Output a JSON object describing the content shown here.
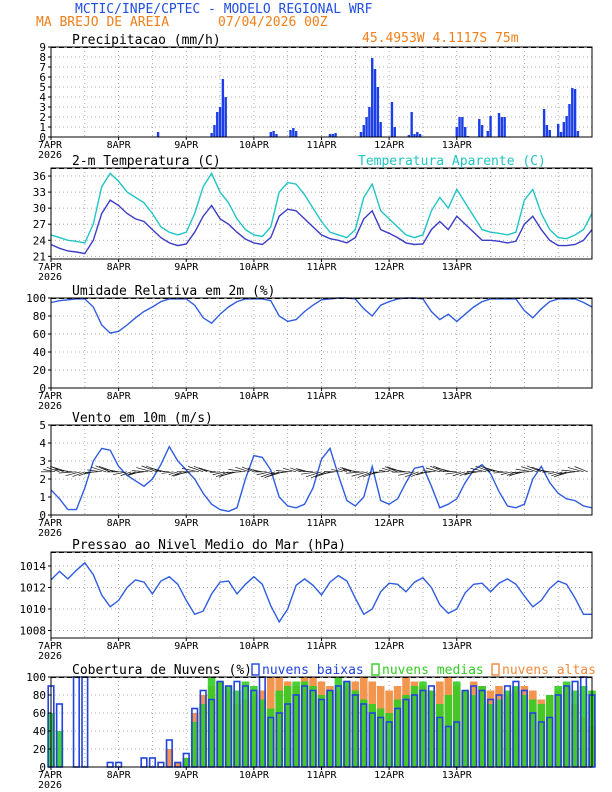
{
  "header": {
    "title": "MCTIC/INPE/CPTEC - MODELO REGIONAL WRF",
    "location": "MA BREJO DE AREIA",
    "run": "07/04/2026 00Z",
    "coords": "45.4953W 4.1117S 75m"
  },
  "colors": {
    "title_blue": "#1f4fe0",
    "orange": "#f07f1a",
    "temp_line": "#3c3cc8",
    "apparent_line": "#22c4c4",
    "line_blue": "#2f5ce0",
    "bar_blue": "#1c3ee6",
    "cloud_low": "#2244dd",
    "cloud_mid": "#33cc22",
    "cloud_high": "#f08a3c"
  },
  "x_axis": {
    "ticks": [
      "7APR",
      "8APR",
      "9APR",
      "10APR",
      "11APR",
      "12APR",
      "13APR"
    ],
    "year": "2026"
  },
  "chart_data": [
    {
      "type": "bar",
      "title": "Precipitacao (mm/h)",
      "ylim": [
        0,
        9
      ],
      "yticks": [
        0,
        1,
        2,
        3,
        4,
        5,
        6,
        7,
        8,
        9
      ],
      "x_hours": [
        26,
        27,
        36,
        38,
        57,
        58,
        59,
        60,
        61,
        62,
        78,
        79,
        80,
        85,
        86,
        87,
        99,
        100,
        101,
        110,
        111,
        112,
        113,
        114,
        115,
        116,
        117,
        121,
        122,
        127,
        128,
        129,
        130,
        131,
        144,
        145,
        146,
        147,
        148,
        152,
        153,
        155,
        156,
        159,
        160,
        161,
        175,
        176,
        177,
        180,
        181,
        182,
        183,
        184,
        185,
        186,
        187
      ],
      "values": [
        0.05,
        0.05,
        0.05,
        0.5,
        0.4,
        1.2,
        2.5,
        3.0,
        5.8,
        4.0,
        0.5,
        0.6,
        0.3,
        0.7,
        0.9,
        0.6,
        0.3,
        0.3,
        0.4,
        0.5,
        1.2,
        2.0,
        3.0,
        7.9,
        6.8,
        5.0,
        1.5,
        3.5,
        1.0,
        0.2,
        2.5,
        0.3,
        0.5,
        0.3,
        1.0,
        2.0,
        2.0,
        1.0,
        0.1,
        1.8,
        1.2,
        0.6,
        2.1,
        2.4,
        2.0,
        2.0,
        2.8,
        1.2,
        0.7,
        1.3,
        0.5,
        1.5,
        2.1,
        3.3,
        4.9,
        4.8,
        0.6
      ]
    },
    {
      "type": "line",
      "title": "2-m Temperatura (C)",
      "ylim": [
        20.5,
        37.5
      ],
      "yticks": [
        21,
        24,
        27,
        30,
        33,
        36
      ],
      "series": [
        {
          "name": "2-m Temperatura (C)",
          "x": [
            0,
            3,
            6,
            9,
            12,
            15,
            18,
            21,
            24,
            27,
            30,
            33,
            36,
            39,
            42,
            45,
            48,
            51,
            54,
            57,
            60,
            63,
            66,
            69,
            72,
            75,
            78,
            81,
            84,
            87,
            90,
            93,
            96,
            99,
            102,
            105,
            108,
            111,
            114,
            117,
            120,
            123,
            126,
            129,
            132,
            135,
            138,
            141,
            144,
            147,
            150,
            153,
            156,
            159,
            162,
            165,
            168,
            171,
            174,
            177,
            180,
            183,
            186,
            189,
            192
          ],
          "y": [
            23.2,
            22.5,
            22.0,
            21.8,
            21.5,
            24.0,
            29.0,
            31.5,
            30.5,
            29.0,
            28.0,
            27.5,
            26.0,
            24.5,
            23.5,
            23.0,
            23.3,
            25.5,
            28.5,
            30.5,
            28.0,
            27.0,
            25.5,
            24.2,
            23.5,
            23.2,
            24.5,
            28.5,
            29.8,
            29.5,
            28.0,
            26.5,
            25.0,
            24.3,
            24.0,
            23.5,
            24.5,
            28.0,
            29.5,
            26.0,
            25.3,
            24.5,
            23.5,
            23.2,
            23.3,
            26.0,
            27.5,
            26.0,
            28.5,
            27.0,
            25.5,
            24.0,
            24.0,
            23.8,
            23.5,
            23.8,
            27.0,
            28.5,
            26.0,
            24.0,
            23.0,
            23.0,
            23.2,
            24.0,
            26.0
          ]
        },
        {
          "name": "Temperatura Aparente (C)",
          "x": [
            0,
            3,
            6,
            9,
            12,
            15,
            18,
            21,
            24,
            27,
            30,
            33,
            36,
            39,
            42,
            45,
            48,
            51,
            54,
            57,
            60,
            63,
            66,
            69,
            72,
            75,
            78,
            81,
            84,
            87,
            90,
            93,
            96,
            99,
            102,
            105,
            108,
            111,
            114,
            117,
            120,
            123,
            126,
            129,
            132,
            135,
            138,
            141,
            144,
            147,
            150,
            153,
            156,
            159,
            162,
            165,
            168,
            171,
            174,
            177,
            180,
            183,
            186,
            189,
            192
          ],
          "y": [
            25.0,
            24.5,
            24.0,
            23.8,
            23.5,
            27.0,
            34.0,
            36.5,
            35.0,
            33.0,
            32.0,
            31.0,
            29.0,
            26.5,
            25.5,
            25.0,
            25.5,
            29.0,
            34.0,
            36.5,
            33.0,
            31.0,
            28.0,
            26.0,
            25.0,
            24.7,
            26.5,
            33.0,
            34.8,
            34.5,
            32.5,
            30.0,
            27.5,
            25.5,
            25.0,
            24.5,
            26.0,
            32.0,
            34.5,
            29.5,
            28.0,
            26.5,
            25.0,
            24.5,
            25.0,
            29.5,
            32.0,
            30.0,
            33.5,
            31.0,
            28.5,
            26.0,
            25.5,
            25.3,
            25.0,
            25.5,
            31.5,
            33.5,
            29.0,
            26.0,
            24.5,
            24.3,
            25.0,
            26.0,
            29.0
          ]
        }
      ]
    },
    {
      "type": "line",
      "title": "Umidade Relativa em 2m (%)",
      "ylim": [
        0,
        100
      ],
      "yticks": [
        0,
        20,
        40,
        60,
        80,
        100
      ],
      "series": [
        {
          "x": [
            0,
            3,
            6,
            9,
            12,
            15,
            18,
            21,
            24,
            27,
            30,
            33,
            36,
            39,
            42,
            45,
            48,
            51,
            54,
            57,
            60,
            63,
            66,
            69,
            72,
            75,
            78,
            81,
            84,
            87,
            90,
            93,
            96,
            99,
            102,
            105,
            108,
            111,
            114,
            117,
            120,
            123,
            126,
            129,
            132,
            135,
            138,
            141,
            144,
            147,
            150,
            153,
            156,
            159,
            162,
            165,
            168,
            171,
            174,
            177,
            180,
            183,
            186,
            189,
            192
          ],
          "y": [
            95,
            97,
            98,
            99,
            99,
            90,
            70,
            61,
            63,
            70,
            78,
            85,
            90,
            96,
            99,
            99,
            99,
            92,
            78,
            72,
            82,
            90,
            96,
            99,
            99,
            99,
            97,
            80,
            74,
            76,
            85,
            92,
            98,
            99,
            100,
            100,
            99,
            88,
            80,
            92,
            96,
            99,
            100,
            100,
            99,
            85,
            76,
            82,
            74,
            82,
            90,
            96,
            99,
            99,
            99,
            99,
            86,
            78,
            88,
            96,
            99,
            99,
            99,
            95,
            90
          ]
        }
      ]
    },
    {
      "type": "line",
      "title": "Vento em 10m (m/s)",
      "ylim": [
        0,
        5
      ],
      "yticks": [
        0,
        1,
        2,
        3,
        4,
        5
      ],
      "series": [
        {
          "x": [
            0,
            3,
            6,
            9,
            12,
            15,
            18,
            21,
            24,
            27,
            30,
            33,
            36,
            39,
            42,
            45,
            48,
            51,
            54,
            57,
            60,
            63,
            66,
            69,
            72,
            75,
            78,
            81,
            84,
            87,
            90,
            93,
            96,
            99,
            102,
            105,
            108,
            111,
            114,
            117,
            120,
            123,
            126,
            129,
            132,
            135,
            138,
            141,
            144,
            147,
            150,
            153,
            156,
            159,
            162,
            165,
            168,
            171,
            174,
            177,
            180,
            183,
            186,
            189,
            192
          ],
          "y": [
            1.4,
            0.9,
            0.3,
            0.3,
            1.5,
            3.0,
            3.7,
            3.6,
            2.7,
            2.2,
            1.9,
            1.6,
            2.0,
            2.8,
            3.8,
            3.0,
            2.5,
            2.0,
            1.2,
            0.6,
            0.3,
            0.2,
            0.4,
            2.0,
            3.3,
            3.2,
            2.5,
            1.0,
            0.5,
            0.4,
            0.6,
            1.5,
            3.1,
            3.7,
            2.2,
            0.8,
            0.5,
            1.0,
            2.7,
            0.8,
            0.6,
            0.9,
            1.8,
            2.6,
            2.7,
            1.6,
            0.4,
            0.6,
            0.9,
            1.8,
            2.5,
            2.8,
            2.3,
            1.3,
            0.5,
            0.4,
            0.6,
            2.0,
            2.7,
            1.8,
            1.2,
            0.9,
            0.8,
            0.5,
            0.4
          ]
        }
      ]
    },
    {
      "type": "line",
      "title": "Pressao ao Nivel Medio do Mar (hPa)",
      "ylim": [
        1007.3,
        1015.3
      ],
      "yticks": [
        1008,
        1010,
        1012,
        1014
      ],
      "series": [
        {
          "x": [
            0,
            3,
            6,
            9,
            12,
            15,
            18,
            21,
            24,
            27,
            30,
            33,
            36,
            39,
            42,
            45,
            48,
            51,
            54,
            57,
            60,
            63,
            66,
            69,
            72,
            75,
            78,
            81,
            84,
            87,
            90,
            93,
            96,
            99,
            102,
            105,
            108,
            111,
            114,
            117,
            120,
            123,
            126,
            129,
            132,
            135,
            138,
            141,
            144,
            147,
            150,
            153,
            156,
            159,
            162,
            165,
            168,
            171,
            174,
            177,
            180,
            183,
            186,
            189,
            192
          ],
          "y": [
            1012.7,
            1013.5,
            1012.8,
            1013.6,
            1014.3,
            1013.2,
            1011.3,
            1010.2,
            1010.8,
            1012.0,
            1012.7,
            1012.5,
            1011.4,
            1012.6,
            1013.0,
            1012.3,
            1010.8,
            1009.5,
            1009.8,
            1011.4,
            1012.5,
            1012.6,
            1011.4,
            1012.3,
            1013.0,
            1012.3,
            1010.3,
            1008.8,
            1010.0,
            1012.2,
            1012.8,
            1012.2,
            1011.3,
            1012.5,
            1013.1,
            1012.6,
            1011.0,
            1009.5,
            1010.0,
            1011.6,
            1012.4,
            1012.3,
            1011.6,
            1012.5,
            1012.9,
            1012.0,
            1010.4,
            1009.6,
            1010.0,
            1011.5,
            1012.3,
            1012.4,
            1011.6,
            1012.4,
            1012.8,
            1012.3,
            1011.2,
            1010.2,
            1010.8,
            1011.9,
            1012.6,
            1012.3,
            1011.0,
            1009.5,
            1009.5
          ]
        }
      ]
    },
    {
      "type": "bar",
      "title": "Cobertura de Nuvens (%)",
      "ylim": [
        0,
        100
      ],
      "yticks": [
        0,
        20,
        40,
        60,
        80,
        100
      ],
      "x_start": 0,
      "x_step": 3,
      "series": [
        {
          "name": "nuvens baixas",
          "values": [
            90,
            70,
            0,
            100,
            100,
            0,
            0,
            5,
            5,
            0,
            0,
            10,
            10,
            5,
            30,
            5,
            15,
            65,
            85,
            75,
            95,
            90,
            95,
            90,
            85,
            100,
            55,
            60,
            70,
            80,
            90,
            85,
            75,
            85,
            90,
            95,
            80,
            70,
            60,
            55,
            50,
            65,
            75,
            80,
            85,
            90,
            55,
            45,
            50,
            85,
            90,
            85,
            75,
            80,
            90,
            95,
            85,
            60,
            50,
            55,
            80,
            90,
            95,
            100,
            80
          ]
        },
        {
          "name": "nuvens medias",
          "values": [
            60,
            40,
            0,
            0,
            0,
            0,
            0,
            0,
            0,
            0,
            0,
            0,
            0,
            0,
            0,
            0,
            10,
            50,
            70,
            100,
            95,
            90,
            85,
            95,
            90,
            75,
            65,
            85,
            90,
            95,
            95,
            90,
            80,
            85,
            100,
            95,
            85,
            75,
            70,
            65,
            60,
            75,
            80,
            90,
            95,
            85,
            70,
            80,
            95,
            85,
            80,
            90,
            70,
            75,
            85,
            90,
            80,
            75,
            70,
            80,
            90,
            95,
            85,
            90,
            85
          ]
        },
        {
          "name": "nuvens altas",
          "values": [
            0,
            0,
            0,
            0,
            0,
            0,
            0,
            0,
            0,
            0,
            0,
            0,
            0,
            0,
            20,
            5,
            10,
            60,
            80,
            90,
            95,
            85,
            70,
            75,
            80,
            85,
            100,
            100,
            95,
            90,
            100,
            100,
            95,
            90,
            85,
            90,
            95,
            100,
            95,
            90,
            85,
            90,
            100,
            95,
            90,
            85,
            95,
            100,
            90,
            85,
            95,
            90,
            85,
            90,
            80,
            85,
            90,
            85,
            75,
            80,
            85,
            90,
            70,
            55,
            45
          ]
        }
      ]
    }
  ]
}
